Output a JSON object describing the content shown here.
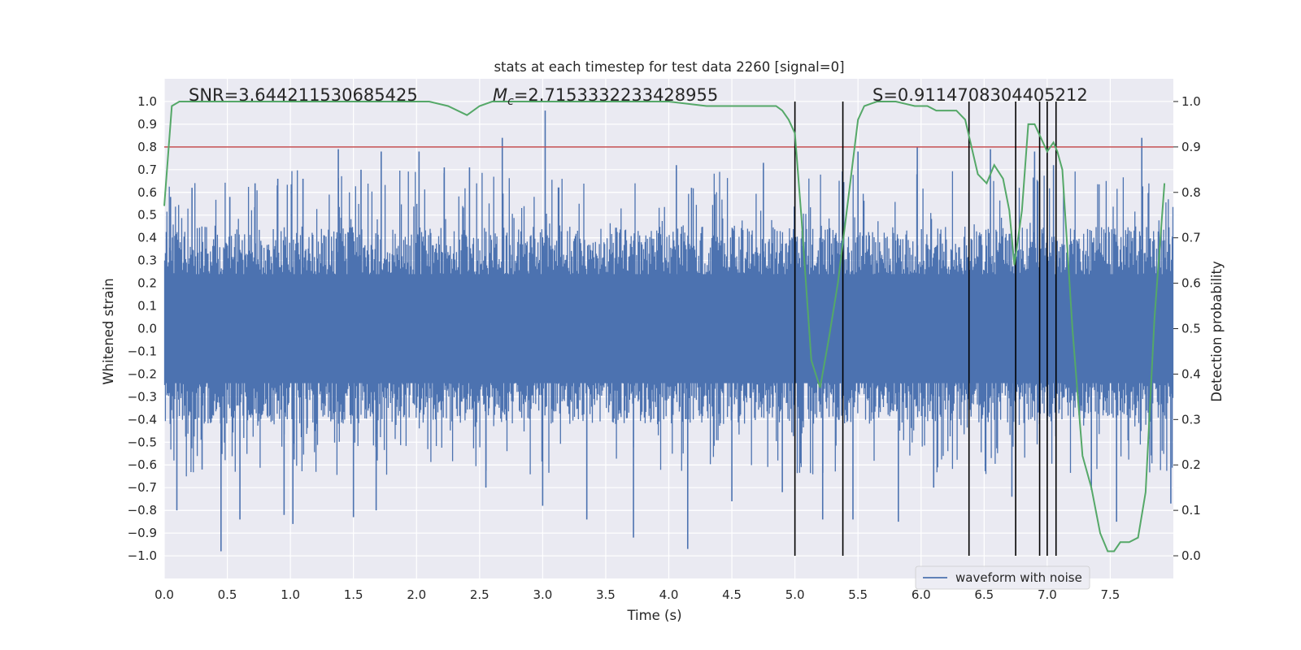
{
  "chart_data": {
    "type": "line",
    "title": "stats at each timestep for test data 2260 [signal=0]",
    "xlabel": "Time (s)",
    "ylabel": "Whitened strain",
    "y2label": "Detection probability",
    "xlim": [
      0.0,
      8.0
    ],
    "ylim": [
      -1.1,
      1.1
    ],
    "y2lim": [
      -0.05,
      1.05
    ],
    "xticks": [
      0.0,
      0.5,
      1.0,
      1.5,
      2.0,
      2.5,
      3.0,
      3.5,
      4.0,
      4.5,
      5.0,
      5.5,
      6.0,
      6.5,
      7.0,
      7.5
    ],
    "xtick_labels": [
      "0.0",
      "0.5",
      "1.0",
      "1.5",
      "2.0",
      "2.5",
      "3.0",
      "3.5",
      "4.0",
      "4.5",
      "5.0",
      "5.5",
      "6.0",
      "6.5",
      "7.0",
      "7.5"
    ],
    "yticks": [
      1.0,
      0.9,
      0.8,
      0.7,
      0.6,
      0.5,
      0.4,
      0.3,
      0.2,
      0.1,
      0.0,
      -0.1,
      -0.2,
      -0.3,
      -0.4,
      -0.5,
      -0.6,
      -0.7,
      -0.8,
      -0.9,
      -1.0
    ],
    "ytick_labels": [
      "1.0",
      "0.9",
      "0.8",
      "0.7",
      "0.6",
      "0.5",
      "0.4",
      "0.3",
      "0.2",
      "0.1",
      "0.0",
      "−0.1",
      "−0.2",
      "−0.3",
      "−0.4",
      "−0.5",
      "−0.6",
      "−0.7",
      "−0.8",
      "−0.9",
      "−1.0"
    ],
    "y2ticks": [
      1.0,
      0.9,
      0.8,
      0.7,
      0.6,
      0.5,
      0.4,
      0.3,
      0.2,
      0.1,
      0.0
    ],
    "y2tick_labels": [
      "1.0",
      "0.9",
      "0.8",
      "0.7",
      "0.6",
      "0.5",
      "0.4",
      "0.3",
      "0.2",
      "0.1",
      "0.0"
    ],
    "annotations": {
      "snr": "SNR=3.644211530685425",
      "mc_symbol": "M",
      "mc_sub": "c",
      "mc_value": "=2.7153332233428955",
      "s": "S=0.9114708304405212"
    },
    "threshold_y2": 0.9,
    "vertical_lines_x": [
      5.0,
      5.38,
      6.38,
      6.75,
      6.94,
      7.0,
      7.07
    ],
    "vlines_y2_range": [
      0.0,
      1.0
    ],
    "waveform": {
      "name": "waveform with noise",
      "typical_range": [
        -0.42,
        0.45
      ],
      "peaks": [
        {
          "x": 0.05,
          "y": 0.58
        },
        {
          "x": 0.1,
          "y": -0.8
        },
        {
          "x": 0.22,
          "y": 0.62
        },
        {
          "x": 0.3,
          "y": -0.62
        },
        {
          "x": 0.45,
          "y": -0.98
        },
        {
          "x": 0.52,
          "y": 0.58
        },
        {
          "x": 0.6,
          "y": -0.84
        },
        {
          "x": 0.72,
          "y": 0.64
        },
        {
          "x": 0.9,
          "y": 0.66
        },
        {
          "x": 0.95,
          "y": -0.82
        },
        {
          "x": 1.02,
          "y": -0.86
        },
        {
          "x": 1.1,
          "y": 0.66
        },
        {
          "x": 1.38,
          "y": 0.79
        },
        {
          "x": 1.5,
          "y": -0.83
        },
        {
          "x": 1.56,
          "y": 0.7
        },
        {
          "x": 1.72,
          "y": 0.78
        },
        {
          "x": 1.68,
          "y": -0.8
        },
        {
          "x": 2.02,
          "y": 0.78
        },
        {
          "x": 2.22,
          "y": 0.71
        },
        {
          "x": 2.42,
          "y": 0.71
        },
        {
          "x": 2.55,
          "y": -0.7
        },
        {
          "x": 2.68,
          "y": 0.84
        },
        {
          "x": 3.02,
          "y": 0.96
        },
        {
          "x": 3.0,
          "y": -0.78
        },
        {
          "x": 3.35,
          "y": -0.84
        },
        {
          "x": 3.72,
          "y": -0.92
        },
        {
          "x": 4.06,
          "y": 0.72
        },
        {
          "x": 4.15,
          "y": -0.97
        },
        {
          "x": 4.18,
          "y": 0.62
        },
        {
          "x": 4.5,
          "y": -0.76
        },
        {
          "x": 4.75,
          "y": 0.73
        },
        {
          "x": 4.9,
          "y": -0.72
        },
        {
          "x": 5.22,
          "y": -0.84
        },
        {
          "x": 5.5,
          "y": 0.78
        },
        {
          "x": 5.46,
          "y": -0.84
        },
        {
          "x": 5.82,
          "y": -0.85
        },
        {
          "x": 5.97,
          "y": 0.8
        },
        {
          "x": 6.1,
          "y": -0.7
        },
        {
          "x": 6.38,
          "y": 0.6
        },
        {
          "x": 6.55,
          "y": 0.79
        },
        {
          "x": 6.72,
          "y": -0.74
        },
        {
          "x": 6.9,
          "y": 0.78
        },
        {
          "x": 7.05,
          "y": 0.72
        },
        {
          "x": 7.35,
          "y": -0.71
        },
        {
          "x": 7.55,
          "y": -0.85
        },
        {
          "x": 7.75,
          "y": 0.84
        },
        {
          "x": 7.98,
          "y": -0.77
        }
      ]
    },
    "probability": {
      "x": [
        0.0,
        0.06,
        0.12,
        0.2,
        0.5,
        1.0,
        1.5,
        2.0,
        2.1,
        2.25,
        2.4,
        2.5,
        2.6,
        2.8,
        3.0,
        3.5,
        4.0,
        4.3,
        4.5,
        4.6,
        4.85,
        4.9,
        4.95,
        5.0,
        5.05,
        5.1,
        5.13,
        5.2,
        5.27,
        5.34,
        5.42,
        5.5,
        5.55,
        5.65,
        5.8,
        5.95,
        6.05,
        6.12,
        6.2,
        6.28,
        6.35,
        6.4,
        6.45,
        6.52,
        6.58,
        6.65,
        6.7,
        6.74,
        6.8,
        6.85,
        6.9,
        6.95,
        7.0,
        7.05,
        7.08,
        7.12,
        7.2,
        7.28,
        7.35,
        7.42,
        7.48,
        7.53,
        7.58,
        7.65,
        7.72,
        7.78,
        7.85,
        7.93
      ],
      "y": [
        0.77,
        0.99,
        1.0,
        1.0,
        1.0,
        1.0,
        1.0,
        1.0,
        1.0,
        0.99,
        0.97,
        0.99,
        1.0,
        1.0,
        1.0,
        1.0,
        1.0,
        0.99,
        0.99,
        0.99,
        0.99,
        0.98,
        0.96,
        0.93,
        0.75,
        0.55,
        0.43,
        0.37,
        0.48,
        0.6,
        0.78,
        0.96,
        0.99,
        1.0,
        1.0,
        0.99,
        0.99,
        0.98,
        0.98,
        0.98,
        0.96,
        0.9,
        0.84,
        0.82,
        0.86,
        0.83,
        0.76,
        0.64,
        0.76,
        0.95,
        0.95,
        0.92,
        0.89,
        0.91,
        0.89,
        0.85,
        0.5,
        0.22,
        0.15,
        0.05,
        0.01,
        0.01,
        0.03,
        0.03,
        0.04,
        0.14,
        0.52,
        0.82
      ]
    },
    "legend": {
      "position": "lower-right",
      "entries": [
        "waveform with noise"
      ]
    },
    "grid": true,
    "colors": {
      "axes_bg": "#eaeaf2",
      "grid": "#ffffff",
      "waveform": "#4c72b0",
      "probability": "#55a868",
      "threshold": "#c44e52",
      "vline": "#000000",
      "text": "#262626"
    }
  }
}
